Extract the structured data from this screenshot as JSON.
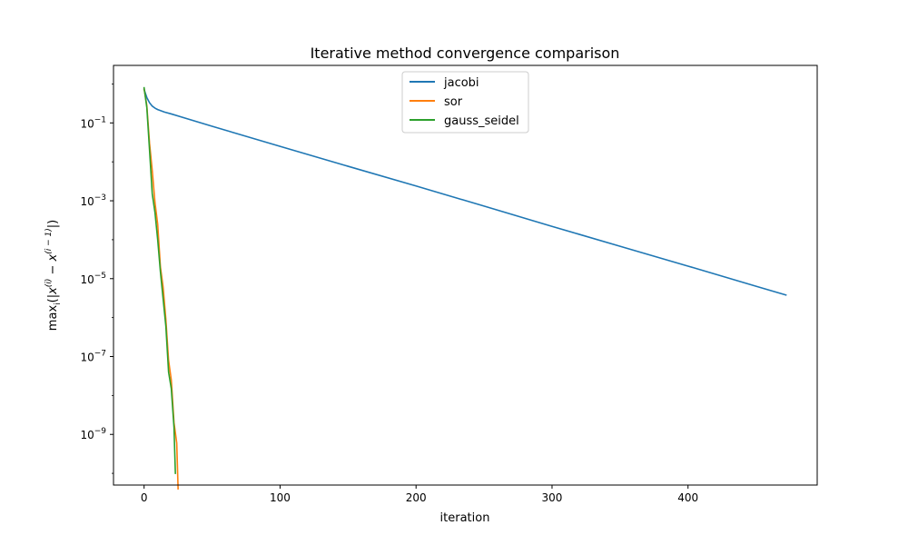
{
  "chart_data": {
    "type": "line",
    "title": "Iterative method convergence comparison",
    "xlabel": "iteration",
    "ylabel": "max_i(|x^(i) − x^(i−1)|)",
    "ylabel_parts": {
      "max": "max",
      "sub": "i",
      "paren_open": "(|",
      "x1": "x",
      "sup1": "(i)",
      "minus": " − ",
      "x2": "x",
      "sup2": "(i − 1)",
      "paren_close": "|)"
    },
    "xlim": [
      -22.5,
      495
    ],
    "ylim": [
      5e-11,
      3
    ],
    "yscale": "log",
    "xticks": [
      0,
      100,
      200,
      300,
      400
    ],
    "xtick_labels": [
      "0",
      "100",
      "200",
      "300",
      "400"
    ],
    "yticks": [
      0.1,
      0.001,
      1e-05,
      1e-07,
      1e-09
    ],
    "ytick_labels": [
      {
        "base": "10",
        "exp": "−1"
      },
      {
        "base": "10",
        "exp": "−3"
      },
      {
        "base": "10",
        "exp": "−5"
      },
      {
        "base": "10",
        "exp": "−7"
      },
      {
        "base": "10",
        "exp": "−9"
      }
    ],
    "grid": false,
    "legend_position": "upper center",
    "series": [
      {
        "name": "jacobi",
        "color": "#1f77b4",
        "x": [
          0,
          2,
          4,
          6,
          8,
          10,
          15,
          20,
          50,
          100,
          150,
          200,
          250,
          300,
          350,
          400,
          450,
          472
        ],
        "y": [
          0.72,
          0.45,
          0.33,
          0.27,
          0.24,
          0.22,
          0.19,
          0.17,
          0.082,
          0.025,
          0.0077,
          0.0024,
          0.00073,
          0.00022,
          6.8e-05,
          2.1e-05,
          6.4e-06,
          3.8e-06
        ]
      },
      {
        "name": "sor",
        "color": "#ff7f0e",
        "x": [
          0,
          2,
          4,
          6,
          8,
          10,
          12,
          14,
          16,
          18,
          20,
          22,
          24,
          25
        ],
        "y": [
          0.75,
          0.28,
          0.03,
          0.006,
          0.0009,
          0.00025,
          2e-05,
          6e-06,
          9e-07,
          8e-08,
          2.5e-08,
          2e-09,
          6e-10,
          4e-11
        ]
      },
      {
        "name": "gauss_seidel",
        "color": "#2ca02c",
        "x": [
          0,
          2,
          4,
          6,
          8,
          10,
          12,
          14,
          16,
          18,
          20,
          22,
          23
        ],
        "y": [
          0.8,
          0.25,
          0.02,
          0.0015,
          0.0005,
          0.0001,
          1.5e-05,
          3e-06,
          6e-07,
          4e-08,
          1.5e-08,
          1.5e-09,
          1e-10
        ]
      }
    ]
  }
}
